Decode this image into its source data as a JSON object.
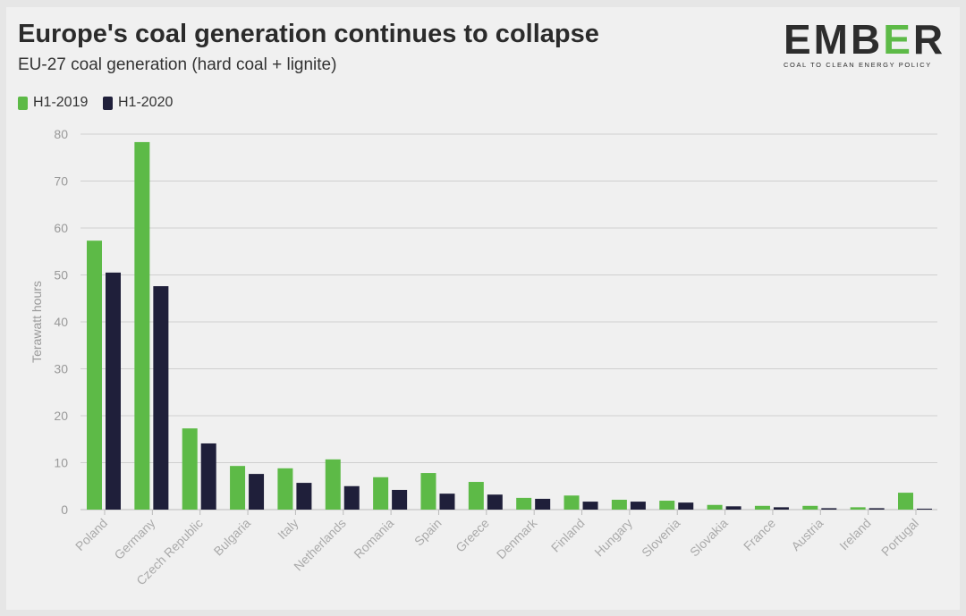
{
  "header": {
    "title": "Europe's coal generation continues to collapse",
    "subtitle": "EU-27 coal generation (hard coal + lignite)"
  },
  "logo": {
    "text": "EMBER",
    "tagline": "COAL TO CLEAN ENERGY POLICY"
  },
  "colors": {
    "h1_2019": "#5dba47",
    "h1_2020": "#1f1f3a"
  },
  "chart_data": {
    "type": "bar",
    "title": "Europe's coal generation continues to collapse",
    "subtitle": "EU-27 coal generation (hard coal + lignite)",
    "ylabel": "Terawatt hours",
    "ylim": [
      0,
      80
    ],
    "yticks": [
      0,
      10,
      20,
      30,
      40,
      50,
      60,
      70,
      80
    ],
    "grid": true,
    "legend": "top-left",
    "categories": [
      "Poland",
      "Germany",
      "Czech Republic",
      "Bulgaria",
      "Italy",
      "Netherlands",
      "Romania",
      "Spain",
      "Greece",
      "Denmark",
      "Finland",
      "Hungary",
      "Slovenia",
      "Slovakia",
      "France",
      "Austria",
      "Ireland",
      "Portugal"
    ],
    "series": [
      {
        "name": "H1-2019",
        "color": "#5dba47",
        "values": [
          57.3,
          78.3,
          17.3,
          9.3,
          8.8,
          10.7,
          6.9,
          7.8,
          5.9,
          2.5,
          3.0,
          2.1,
          1.9,
          1.0,
          0.8,
          0.8,
          0.5,
          3.6
        ]
      },
      {
        "name": "H1-2020",
        "color": "#1f1f3a",
        "values": [
          50.5,
          47.6,
          14.1,
          7.6,
          5.7,
          5.0,
          4.2,
          3.4,
          3.2,
          2.3,
          1.7,
          1.7,
          1.5,
          0.7,
          0.5,
          0.3,
          0.3,
          0.2
        ]
      }
    ]
  }
}
